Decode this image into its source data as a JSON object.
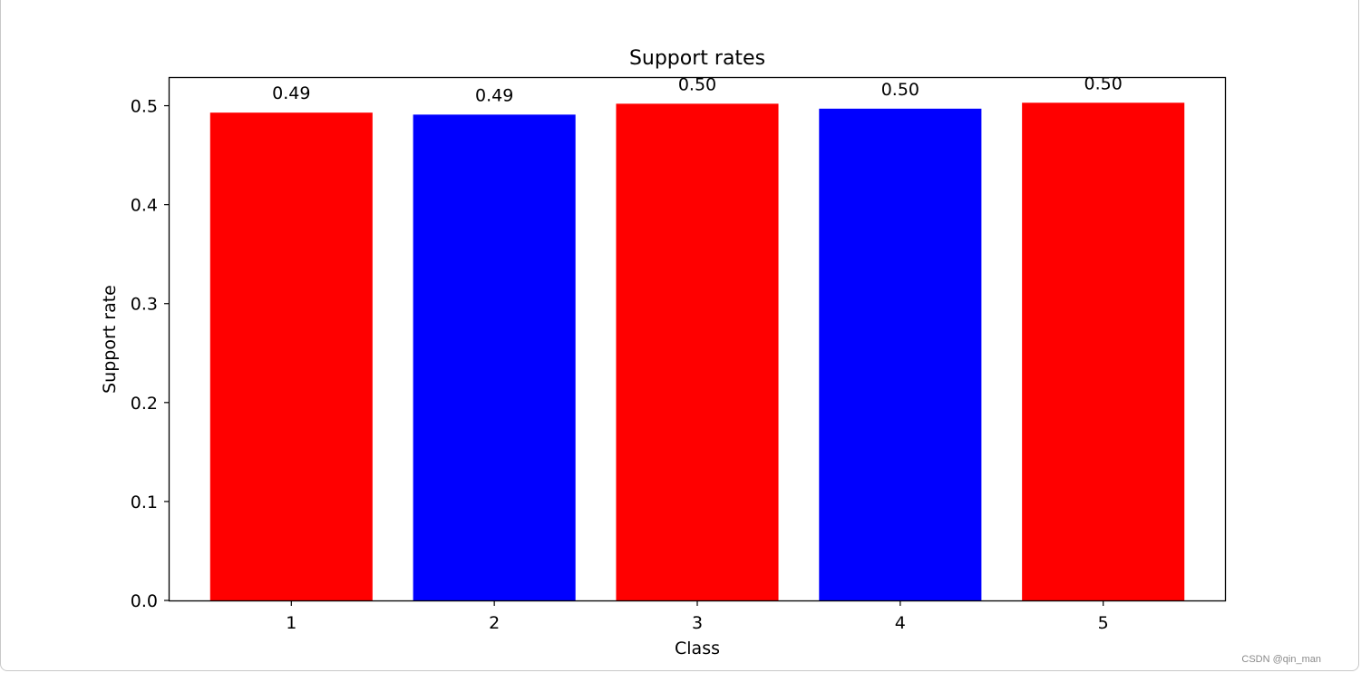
{
  "chart_data": {
    "type": "bar",
    "title": "Support rates",
    "xlabel": "Class",
    "ylabel": "Support rate",
    "categories": [
      "1",
      "2",
      "3",
      "4",
      "5"
    ],
    "values": [
      0.493,
      0.491,
      0.502,
      0.497,
      0.503
    ],
    "value_labels": [
      "0.49",
      "0.49",
      "0.50",
      "0.50",
      "0.50"
    ],
    "bar_colors": [
      "#ff0000",
      "#0000ff",
      "#ff0000",
      "#0000ff",
      "#ff0000"
    ],
    "ylim": [
      0,
      0.528
    ],
    "yticks": [
      0.0,
      0.1,
      0.2,
      0.3,
      0.4,
      0.5
    ],
    "ytick_labels": [
      "0.0",
      "0.1",
      "0.2",
      "0.3",
      "0.4",
      "0.5"
    ],
    "grid": false,
    "legend": "none"
  },
  "watermark": "CSDN @qin_man"
}
